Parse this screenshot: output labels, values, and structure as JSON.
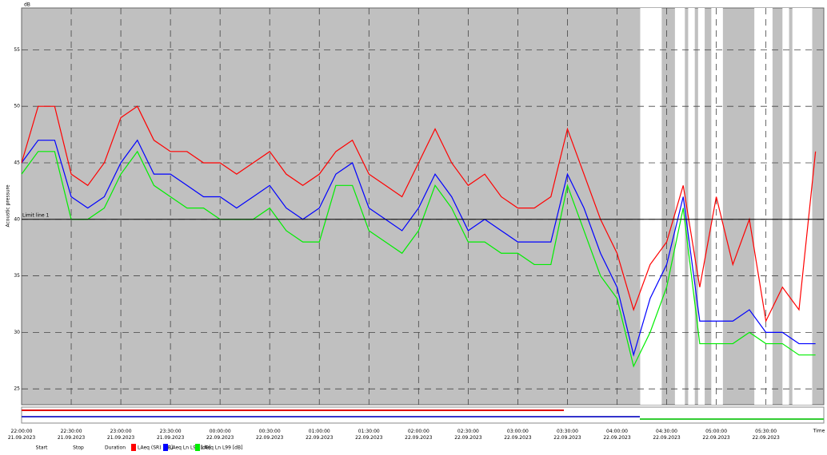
{
  "chart_data": {
    "type": "line",
    "y_unit": "dB",
    "y_label": "Acoustic pressure",
    "x_label": "Time",
    "limit_line": {
      "label": "Limit line 1",
      "value": 40
    },
    "legend_headers": [
      "Start",
      "Stop",
      "Duration"
    ],
    "grid": true,
    "ylim": [
      23.6,
      58.7
    ],
    "yticks": [
      25,
      30,
      35,
      40,
      45,
      50,
      55
    ],
    "xlim": [
      "2023-09-21T22:00:00",
      "2023-09-22T06:05:00"
    ],
    "xticks": [
      {
        "value": "2023-09-21T22:00:00",
        "label": "22:00:00 21.09.2023"
      },
      {
        "value": "2023-09-21T22:30:00",
        "label": "22:30:00 21.09.2023"
      },
      {
        "value": "2023-09-21T23:00:00",
        "label": "23:00:00 21.09.2023"
      },
      {
        "value": "2023-09-21T23:30:00",
        "label": "23:30:00 21.09.2023"
      },
      {
        "value": "2023-09-22T00:00:00",
        "label": "00:00:00 22.09.2023"
      },
      {
        "value": "2023-09-22T00:30:00",
        "label": "00:30:00 22.09.2023"
      },
      {
        "value": "2023-09-22T01:00:00",
        "label": "01:00:00 22.09.2023"
      },
      {
        "value": "2023-09-22T01:30:00",
        "label": "01:30:00 22.09.2023"
      },
      {
        "value": "2023-09-22T02:00:00",
        "label": "02:00:00 22.09.2023"
      },
      {
        "value": "2023-09-22T02:30:00",
        "label": "02:30:00 22.09.2023"
      },
      {
        "value": "2023-09-22T03:00:00",
        "label": "03:00:00 22.09.2023"
      },
      {
        "value": "2023-09-22T03:30:00",
        "label": "03:30:00 22.09.2023"
      },
      {
        "value": "2023-09-22T04:00:00",
        "label": "04:00:00 22.09.2023"
      },
      {
        "value": "2023-09-22T04:30:00",
        "label": "04:30:00 22.09.2023"
      },
      {
        "value": "2023-09-22T05:00:00",
        "label": "05:00:00 22.09.2023"
      },
      {
        "value": "2023-09-22T05:30:00",
        "label": "05:30:00 22.09.2023"
      }
    ],
    "excluded_periods": [
      [
        "2023-09-22T04:14:00",
        "2023-09-22T04:27:00"
      ],
      [
        "2023-09-22T04:35:00",
        "2023-09-22T04:41:00"
      ],
      [
        "2023-09-22T04:43:00",
        "2023-09-22T04:47:00"
      ],
      [
        "2023-09-22T04:49:00",
        "2023-09-22T04:53:00"
      ],
      [
        "2023-09-22T04:57:00",
        "2023-09-22T05:04:00"
      ],
      [
        "2023-09-22T05:23:00",
        "2023-09-22T05:34:00"
      ],
      [
        "2023-09-22T05:40:00",
        "2023-09-22T05:44:00"
      ],
      [
        "2023-09-22T05:46:00",
        "2023-09-22T05:58:00"
      ]
    ],
    "x": [
      "2023-09-21T22:00:00",
      "2023-09-21T22:10:00",
      "2023-09-21T22:20:00",
      "2023-09-21T22:30:00",
      "2023-09-21T22:40:00",
      "2023-09-21T22:50:00",
      "2023-09-21T23:00:00",
      "2023-09-21T23:10:00",
      "2023-09-21T23:20:00",
      "2023-09-21T23:30:00",
      "2023-09-21T23:40:00",
      "2023-09-21T23:50:00",
      "2023-09-22T00:00:00",
      "2023-09-22T00:10:00",
      "2023-09-22T00:20:00",
      "2023-09-22T00:30:00",
      "2023-09-22T00:40:00",
      "2023-09-22T00:50:00",
      "2023-09-22T01:00:00",
      "2023-09-22T01:10:00",
      "2023-09-22T01:20:00",
      "2023-09-22T01:30:00",
      "2023-09-22T01:40:00",
      "2023-09-22T01:50:00",
      "2023-09-22T02:00:00",
      "2023-09-22T02:10:00",
      "2023-09-22T02:20:00",
      "2023-09-22T02:30:00",
      "2023-09-22T02:40:00",
      "2023-09-22T02:50:00",
      "2023-09-22T03:00:00",
      "2023-09-22T03:10:00",
      "2023-09-22T03:20:00",
      "2023-09-22T03:30:00",
      "2023-09-22T03:40:00",
      "2023-09-22T03:50:00",
      "2023-09-22T04:00:00",
      "2023-09-22T04:10:00",
      "2023-09-22T04:20:00",
      "2023-09-22T04:30:00",
      "2023-09-22T04:40:00",
      "2023-09-22T04:50:00",
      "2023-09-22T05:00:00",
      "2023-09-22T05:10:00",
      "2023-09-22T05:20:00",
      "2023-09-22T05:30:00",
      "2023-09-22T05:40:00",
      "2023-09-22T05:50:00",
      "2023-09-22T06:00:00"
    ],
    "series": [
      {
        "name": "LAeq (SR) [dB]",
        "color": "#ff0000",
        "values": [
          45,
          50,
          50,
          44,
          43,
          45,
          49,
          50,
          47,
          46,
          46,
          45,
          45,
          44,
          45,
          46,
          44,
          43,
          44,
          46,
          47,
          44,
          43,
          42,
          45,
          48,
          45,
          43,
          44,
          42,
          41,
          41,
          42,
          48,
          44,
          40,
          37,
          32,
          36,
          38,
          43,
          34,
          42,
          36,
          40,
          31,
          34,
          32,
          46
        ]
      },
      {
        "name": "LAeq Ln L90 [dB]",
        "color": "#0000ff",
        "values": [
          45,
          47,
          47,
          42,
          41,
          42,
          45,
          47,
          44,
          44,
          43,
          42,
          42,
          41,
          42,
          43,
          41,
          40,
          41,
          44,
          45,
          41,
          40,
          39,
          41,
          44,
          42,
          39,
          40,
          39,
          38,
          38,
          38,
          44,
          41,
          37,
          34,
          28,
          33,
          36,
          42,
          31,
          31,
          31,
          32,
          30,
          30,
          29,
          29
        ]
      },
      {
        "name": "LAeq Ln L99 [dB]",
        "color": "#00ee00",
        "values": [
          44,
          46,
          46,
          40,
          40,
          41,
          44,
          46,
          43,
          42,
          41,
          41,
          40,
          40,
          40,
          41,
          39,
          38,
          38,
          43,
          43,
          39,
          38,
          37,
          39,
          43,
          41,
          38,
          38,
          37,
          37,
          36,
          36,
          43,
          39,
          35,
          33,
          27,
          30,
          34,
          41,
          29,
          29,
          29,
          30,
          29,
          29,
          28,
          28
        ]
      }
    ]
  }
}
